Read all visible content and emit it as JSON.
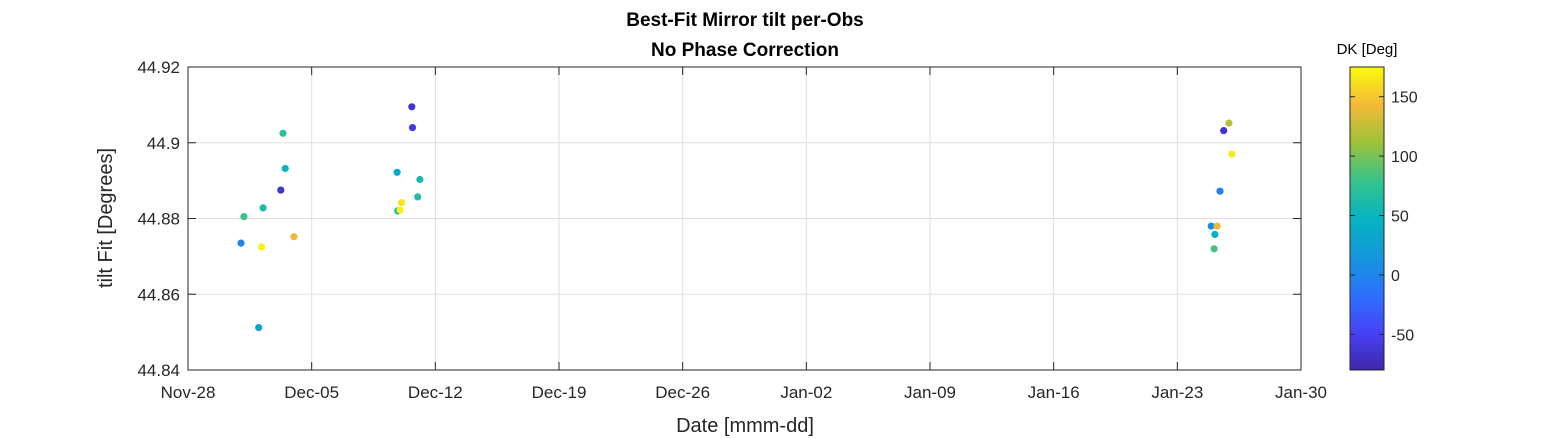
{
  "chart_data": {
    "type": "scatter",
    "title": "Best-Fit Mirror tilt per-Obs",
    "subtitle": "No Phase Correction",
    "xlabel": "Date [mmm-dd]",
    "ylabel": "tilt Fit [Degrees]",
    "x_ticks": [
      "Nov-28",
      "Dec-05",
      "Dec-12",
      "Dec-19",
      "Dec-26",
      "Jan-02",
      "Jan-09",
      "Jan-16",
      "Jan-23",
      "Jan-30"
    ],
    "xlim": [
      "Nov-28",
      "Jan-30"
    ],
    "ylim": [
      44.84,
      44.92
    ],
    "y_ticks": [
      "44.84",
      "44.86",
      "44.88",
      "44.9",
      "44.92"
    ],
    "grid": true,
    "colorbar": {
      "title": "DK [Deg]",
      "range": [
        -80,
        175
      ],
      "ticks": [
        "-50",
        "0",
        "50",
        "100",
        "150"
      ],
      "colormap": "parula"
    },
    "points": [
      {
        "date": "Dec-01 00:00",
        "y": 44.8735,
        "dk": 0
      },
      {
        "date": "Dec-01 04:00",
        "y": 44.8805,
        "dk": 80
      },
      {
        "date": "Dec-02 00:00",
        "y": 44.8512,
        "dk": 30
      },
      {
        "date": "Dec-02 04:00",
        "y": 44.8725,
        "dk": 170
      },
      {
        "date": "Dec-02 06:00",
        "y": 44.8828,
        "dk": 65
      },
      {
        "date": "Dec-03 06:00",
        "y": 44.8875,
        "dk": -65
      },
      {
        "date": "Dec-03 09:00",
        "y": 44.9025,
        "dk": 70
      },
      {
        "date": "Dec-03 12:00",
        "y": 44.8932,
        "dk": 50
      },
      {
        "date": "Dec-04 00:00",
        "y": 44.8752,
        "dk": 140
      },
      {
        "date": "Dec-09 20:00",
        "y": 44.8922,
        "dk": 35
      },
      {
        "date": "Dec-09 21:00",
        "y": 44.882,
        "dk": 45
      },
      {
        "date": "Dec-10 00:00",
        "y": 44.8822,
        "dk": 170
      },
      {
        "date": "Dec-10 02:00",
        "y": 44.8842,
        "dk": 165
      },
      {
        "date": "Dec-10 16:00",
        "y": 44.9095,
        "dk": -65
      },
      {
        "date": "Dec-10 17:00",
        "y": 44.904,
        "dk": -60
      },
      {
        "date": "Dec-11 00:00",
        "y": 44.8857,
        "dk": 65
      },
      {
        "date": "Dec-11 03:00",
        "y": 44.8903,
        "dk": 60
      },
      {
        "date": "Jan-24 22:00",
        "y": 44.878,
        "dk": 5
      },
      {
        "date": "Jan-25 02:00",
        "y": 44.872,
        "dk": 85
      },
      {
        "date": "Jan-25 03:00",
        "y": 44.8758,
        "dk": 40
      },
      {
        "date": "Jan-25 06:00",
        "y": 44.878,
        "dk": 140
      },
      {
        "date": "Jan-25 10:00",
        "y": 44.8872,
        "dk": -5
      },
      {
        "date": "Jan-25 15:00",
        "y": 44.9032,
        "dk": -65
      },
      {
        "date": "Jan-25 22:00",
        "y": 44.9052,
        "dk": 120
      },
      {
        "date": "Jan-26 02:00",
        "y": 44.897,
        "dk": 165
      }
    ]
  }
}
